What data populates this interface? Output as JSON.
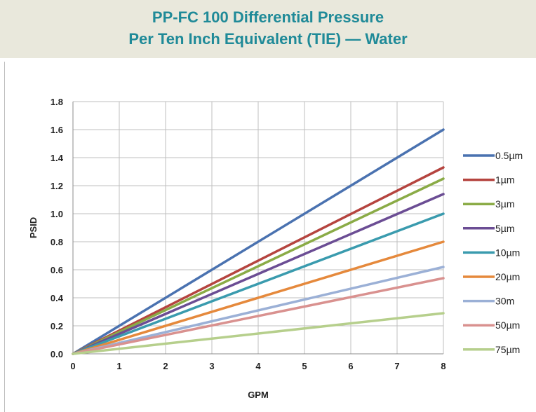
{
  "header": {
    "title_line1": "PP-FC 100 Differential Pressure",
    "title_line2": "Per Ten Inch Equivalent (TIE) — Water"
  },
  "colors": {
    "header_bg": "#e9e8dc",
    "title": "#1f8a98"
  },
  "chart_data": {
    "type": "line",
    "title": "PP-FC 100 Differential Pressure Per Ten Inch Equivalent (TIE) — Water",
    "xlabel": "GPM",
    "ylabel": "PSID",
    "xlim": [
      0,
      8
    ],
    "ylim": [
      0,
      1.8
    ],
    "x_ticks": [
      "0",
      "1",
      "2",
      "3",
      "4",
      "5",
      "6",
      "7",
      "8"
    ],
    "y_ticks": [
      "0.0",
      "0.2",
      "0.4",
      "0.6",
      "0.8",
      "1.0",
      "1.2",
      "1.4",
      "1.6",
      "1.8"
    ],
    "grid": true,
    "legend_position": "right",
    "x": [
      0,
      8
    ],
    "series": [
      {
        "name": "0.5µm",
        "color": "#4a72b0",
        "values": [
          0,
          1.6
        ]
      },
      {
        "name": "1µm",
        "color": "#b5443f",
        "values": [
          0,
          1.33
        ]
      },
      {
        "name": "3µm",
        "color": "#8aab46",
        "values": [
          0,
          1.25
        ]
      },
      {
        "name": "5µm",
        "color": "#6b4d94",
        "values": [
          0,
          1.14
        ]
      },
      {
        "name": "10µm",
        "color": "#3a9bae",
        "values": [
          0,
          1.0
        ]
      },
      {
        "name": "20µm",
        "color": "#e5893c",
        "values": [
          0,
          0.8
        ]
      },
      {
        "name": "30m",
        "color": "#9bb0d6",
        "values": [
          0,
          0.62
        ]
      },
      {
        "name": "50µm",
        "color": "#d9918f",
        "values": [
          0,
          0.54
        ]
      },
      {
        "name": "75µm",
        "color": "#b6cf8c",
        "values": [
          0,
          0.29
        ]
      }
    ]
  }
}
